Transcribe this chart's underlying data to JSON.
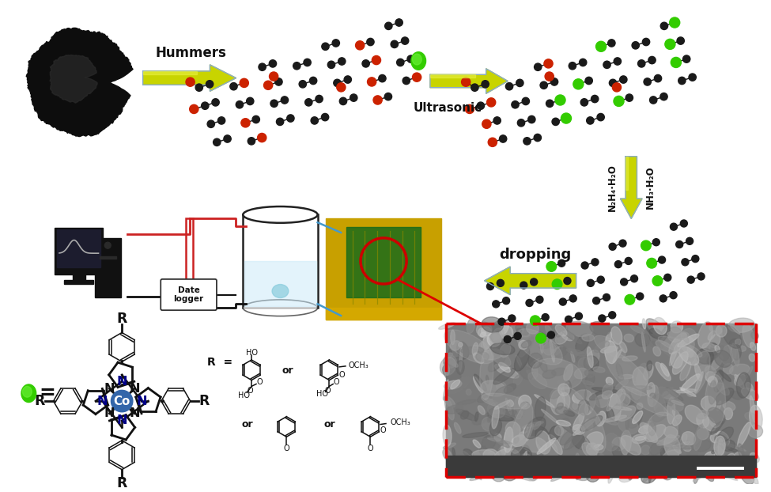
{
  "background_color": "#ffffff",
  "arrow_yellow": "#c8d400",
  "arrow_yellow_light": "#e8f040",
  "arrow_outline": "#9aaa00",
  "arrow_blue_outline": "#88aacc",
  "text_hummers": "Hummers",
  "text_ultrasonic": "Ultrasonic",
  "text_dropping": "dropping",
  "text_date_logger": "Date\nlogger",
  "text_n2h4h2o": "N₂H₄·H₂O",
  "text_nh3h2o": "NH₃·H₂O",
  "text_r_equals": "R =",
  "text_or": "or",
  "figsize": [
    9.75,
    6.22
  ],
  "dpi": 100
}
